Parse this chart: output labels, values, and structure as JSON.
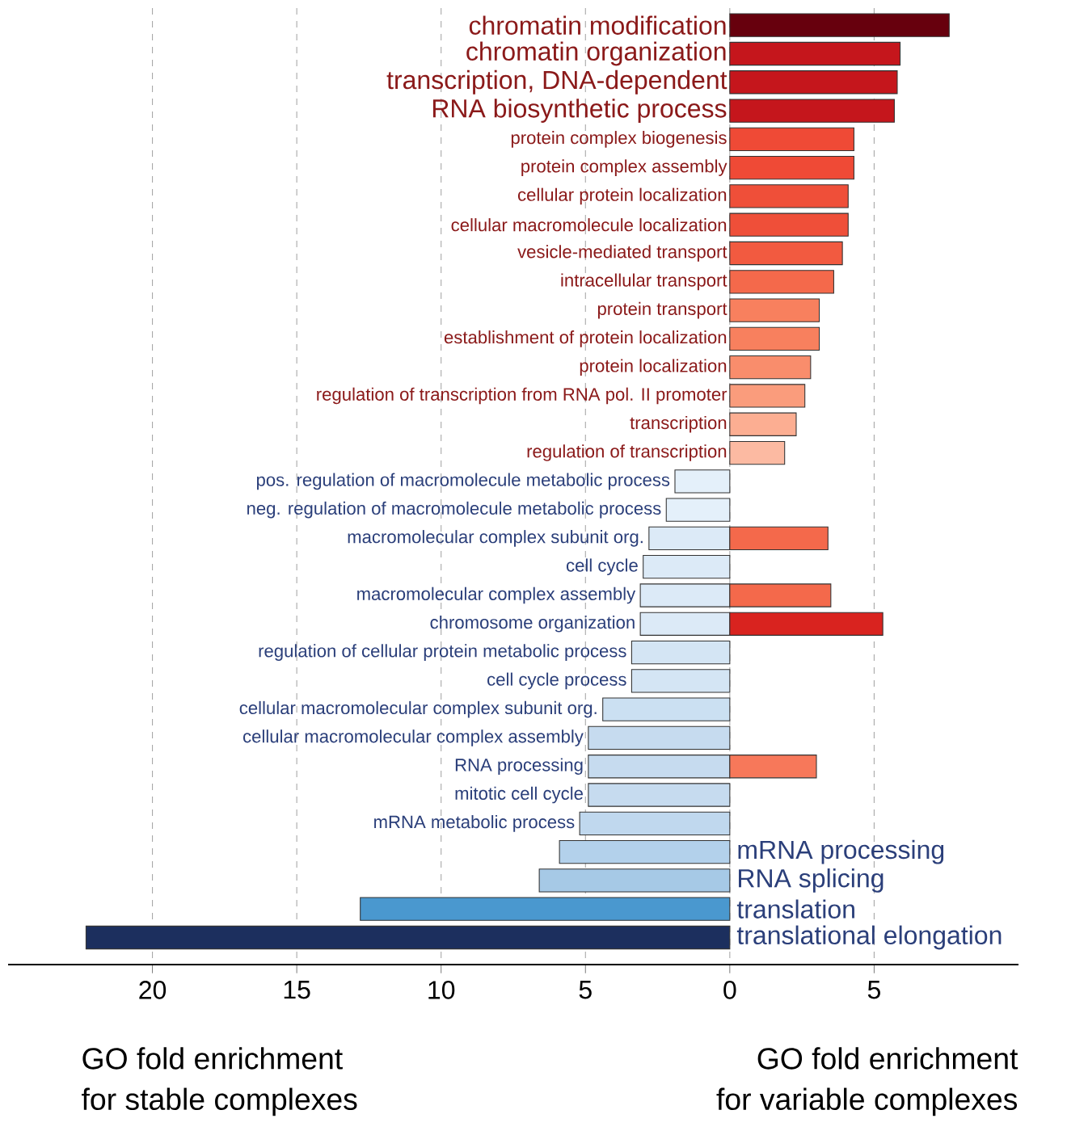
{
  "chart_data": {
    "type": "bar",
    "orientation": "horizontal",
    "categories": [
      "chromatin modification",
      "chromatin organization",
      "transcription, DNA-dependent",
      "RNA biosynthetic process",
      "protein complex biogenesis",
      "protein complex assembly",
      "cellular protein localization",
      "cellular macromolecule localization",
      "vesicle-mediated transport",
      "intracellular transport",
      "protein transport",
      "establishment of protein localization",
      "protein localization",
      "regulation of transcription from RNA pol. II promoter",
      "transcription",
      "regulation of transcription",
      "pos. regulation of macromolecule metabolic process",
      "neg. regulation of macromolecule metabolic process",
      "macromolecular complex subunit org.",
      "cell cycle",
      "macromolecular complex assembly",
      "chromosome organization",
      "regulation of cellular protein metabolic process",
      "cell cycle process",
      "cellular macromolecular complex subunit org.",
      "cellular macromolecular complex assembly",
      "RNA processing",
      "mitotic cell cycle",
      "mRNA metabolic process",
      "mRNA processing",
      "RNA splicing",
      "translation",
      "translational elongation"
    ],
    "series": [
      {
        "values": [
          null,
          null,
          null,
          null,
          null,
          null,
          null,
          null,
          null,
          null,
          null,
          null,
          null,
          null,
          null,
          null,
          -1.9,
          -2.2,
          -2.8,
          -3.0,
          -3.1,
          -3.1,
          -3.4,
          -3.4,
          -4.4,
          -4.9,
          -4.9,
          -4.9,
          -5.2,
          -5.9,
          -6.6,
          -12.8,
          -22.3
        ],
        "colors": [
          null,
          null,
          null,
          null,
          null,
          null,
          null,
          null,
          null,
          null,
          null,
          null,
          null,
          null,
          null,
          null,
          "#e4f0fa",
          "#e4f0fa",
          "#dceaf7",
          "#dceaf7",
          "#dceaf7",
          "#dceaf7",
          "#d4e5f4",
          "#d4e5f4",
          "#cbe0f2",
          "#c6dbef",
          "#c6dbef",
          "#c6dbef",
          "#c0d8ee",
          "#b3d1eb",
          "#a6c9e6",
          "#4a98cf",
          "#1c2f5e"
        ]
      },
      {
        "values": [
          7.6,
          5.9,
          5.8,
          5.7,
          4.3,
          4.3,
          4.1,
          4.1,
          3.9,
          3.6,
          3.1,
          3.1,
          2.8,
          2.6,
          2.3,
          1.9,
          null,
          null,
          3.4,
          null,
          3.5,
          5.3,
          null,
          null,
          null,
          null,
          3.0,
          null,
          null,
          null,
          null,
          null,
          null
        ],
        "colors": [
          "#67000d",
          "#c5161c",
          "#c5161c",
          "#c5161c",
          "#ef4a36",
          "#ef4a36",
          "#ef4f39",
          "#ef4f39",
          "#f25a40",
          "#f4694b",
          "#f8805e",
          "#f8805e",
          "#f98d6c",
          "#fa9c7c",
          "#fcae92",
          "#fcbaa2",
          null,
          null,
          "#f4694b",
          null,
          "#f4694b",
          "#d9231f",
          null,
          null,
          null,
          null,
          "#f7785a",
          null,
          null,
          null,
          null,
          null,
          null
        ]
      }
    ],
    "xlim": [
      -25,
      10
    ],
    "xticks": [
      {
        "value": -20,
        "label": "20"
      },
      {
        "value": -15,
        "label": "15"
      },
      {
        "value": -10,
        "label": "10"
      },
      {
        "value": -5,
        "label": "5"
      },
      0,
      5
    ],
    "grid": "x",
    "annotations": [
      "GO fold enrichment",
      "for stable complexes",
      "GO fold enrichment",
      "for variable complexes"
    ]
  }
}
